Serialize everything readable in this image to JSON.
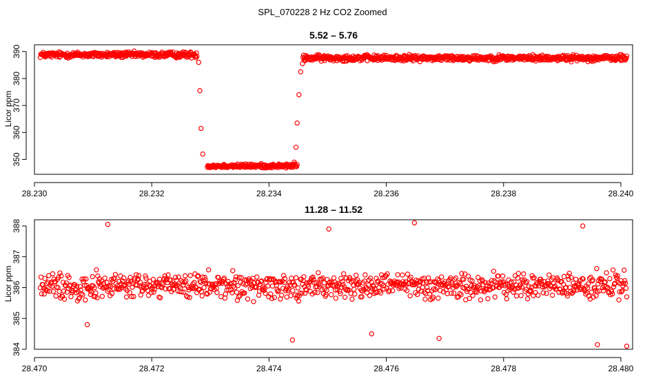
{
  "figure": {
    "title": "SPL_070228 2 Hz CO2 Zoomed"
  },
  "colors": {
    "points": "#ff0000",
    "axes": "#000000",
    "background": "#ffffff"
  },
  "chart_data": [
    {
      "type": "scatter",
      "title": "5.52 – 5.76",
      "xlabel": "",
      "ylabel": "Licor ppm",
      "xlim": [
        28.23,
        28.2402
      ],
      "ylim": [
        344.5,
        392.5
      ],
      "xticks": [
        28.23,
        28.232,
        28.234,
        28.236,
        28.238,
        28.24
      ],
      "xtick_labels": [
        "28.230",
        "28.232",
        "28.234",
        "28.236",
        "28.238",
        "28.240"
      ],
      "yticks": [
        350,
        360,
        370,
        380,
        390
      ],
      "ytick_labels": [
        "350",
        "360",
        "370",
        "380",
        "390"
      ],
      "series": [
        {
          "segments": [
            {
              "x_start": 28.2301,
              "x_end": 28.23277,
              "y_center": 388.8,
              "spread": 1.6,
              "count": 320
            },
            {
              "x_start": 28.23295,
              "x_end": 28.23448,
              "y_center": 347.6,
              "spread": 1.1,
              "count": 185
            },
            {
              "x_start": 28.23458,
              "x_end": 28.2401,
              "y_center": 387.6,
              "spread": 1.6,
              "count": 660
            }
          ],
          "transition_points": [
            [
              28.2328,
              386.0
            ],
            [
              28.23282,
              375.5
            ],
            [
              28.23284,
              361.5
            ],
            [
              28.23287,
              352.0
            ],
            [
              28.23443,
              349.0
            ],
            [
              28.23446,
              354.5
            ],
            [
              28.23448,
              363.5
            ],
            [
              28.23451,
              374.0
            ],
            [
              28.23454,
              382.5
            ],
            [
              28.23457,
              385.5
            ]
          ]
        }
      ]
    },
    {
      "type": "scatter",
      "title": "11.28 – 11.52",
      "xlabel": "",
      "ylabel": "Licor ppm",
      "xlim": [
        28.47,
        28.4802
      ],
      "ylim": [
        384.0,
        388.2
      ],
      "xticks": [
        28.47,
        28.472,
        28.474,
        28.476,
        28.478,
        28.48
      ],
      "xtick_labels": [
        "28.470",
        "28.472",
        "28.474",
        "28.476",
        "28.478",
        "28.480"
      ],
      "yticks": [
        384,
        385,
        386,
        387,
        388
      ],
      "ytick_labels": [
        "384",
        "385",
        "386",
        "387",
        "388"
      ],
      "series": [
        {
          "segments": [
            {
              "x_start": 28.4701,
              "x_end": 28.4801,
              "y_center": 386.05,
              "spread": 0.62,
              "count": 900
            }
          ],
          "outlier_points": [
            [
              28.47125,
              388.05
            ],
            [
              28.47648,
              388.1
            ],
            [
              28.47935,
              388.0
            ],
            [
              28.47502,
              387.9
            ],
            [
              28.4744,
              384.3
            ],
            [
              28.4796,
              384.15
            ],
            [
              28.4801,
              384.1
            ],
            [
              28.47575,
              384.5
            ],
            [
              28.4769,
              384.35
            ],
            [
              28.4709,
              384.8
            ]
          ]
        }
      ]
    }
  ]
}
